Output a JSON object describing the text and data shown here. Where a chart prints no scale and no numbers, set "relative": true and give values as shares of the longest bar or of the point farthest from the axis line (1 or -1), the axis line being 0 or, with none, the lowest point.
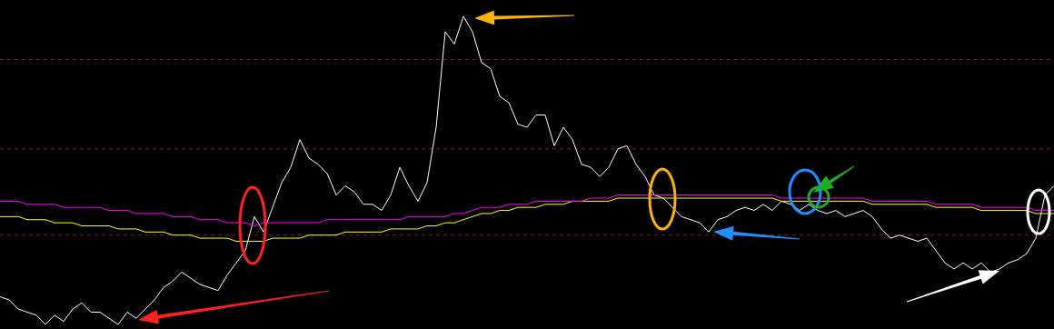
{
  "chart_data": {
    "type": "line",
    "relative": true,
    "categories": [
      null,
      null,
      null,
      null,
      null,
      null,
      null,
      null,
      null,
      null,
      null,
      null,
      null,
      null,
      null,
      null,
      null,
      null,
      null,
      null,
      null,
      null,
      null,
      null,
      null,
      null,
      null,
      null,
      null,
      null,
      null,
      null,
      null,
      null,
      null,
      null,
      null,
      null,
      null,
      null,
      null,
      null,
      null,
      null,
      null,
      null,
      null,
      null,
      null,
      null,
      null,
      null,
      null,
      null,
      null,
      null,
      null,
      null,
      null,
      null,
      null,
      null,
      null,
      null,
      null,
      null,
      null,
      null,
      null,
      null,
      null,
      null,
      null,
      null,
      null,
      null,
      null,
      null,
      null,
      null,
      null,
      null,
      null,
      null,
      null,
      null,
      null,
      null,
      null,
      null,
      null,
      null,
      null,
      null,
      null,
      null,
      null,
      null,
      null,
      null,
      null,
      null,
      null,
      null,
      null,
      null,
      null,
      null,
      null,
      null,
      null,
      null,
      null,
      null,
      null,
      null,
      null
    ],
    "series": [
      {
        "color": "#ff00ff",
        "values": [
          0.4,
          0.4,
          0.4,
          0.39,
          0.39,
          0.39,
          0.39,
          0.38,
          0.38,
          0.38,
          0.38,
          0.38,
          0.37,
          0.37,
          0.37,
          0.36,
          0.36,
          0.36,
          0.36,
          0.35,
          0.35,
          0.35,
          0.34,
          0.34,
          0.34,
          0.33,
          0.33,
          0.33,
          0.32,
          0.33,
          0.33,
          0.33,
          0.33,
          0.33,
          0.33,
          0.33,
          0.34,
          0.34,
          0.34,
          0.34,
          0.34,
          0.34,
          0.34,
          0.34,
          0.34,
          0.35,
          0.35,
          0.35,
          0.35,
          0.35,
          0.36,
          0.36,
          0.37,
          0.38,
          0.38,
          0.38,
          0.39,
          0.39,
          0.39,
          0.4,
          0.4,
          0.4,
          0.4,
          0.4,
          0.4,
          0.41,
          0.41,
          0.41,
          0.42,
          0.42,
          0.42,
          0.42,
          0.42,
          0.42,
          0.42,
          0.42,
          0.42,
          0.42,
          0.42,
          0.42,
          0.42,
          0.42,
          0.42,
          0.42,
          0.42,
          0.42,
          0.41,
          0.41,
          0.41,
          0.41,
          0.41,
          0.41,
          0.41,
          0.41,
          0.41,
          0.41,
          0.4,
          0.4,
          0.4,
          0.4,
          0.4,
          0.4,
          0.4,
          0.39,
          0.39,
          0.39,
          0.39,
          0.39,
          0.38,
          0.38,
          0.38,
          0.38,
          0.38,
          0.38,
          0.37,
          0.37,
          0.37
        ]
      },
      {
        "color": "#ffff00",
        "values": [
          0.35,
          0.35,
          0.35,
          0.34,
          0.34,
          0.34,
          0.33,
          0.33,
          0.33,
          0.32,
          0.32,
          0.32,
          0.32,
          0.31,
          0.31,
          0.31,
          0.3,
          0.3,
          0.3,
          0.29,
          0.29,
          0.29,
          0.28,
          0.28,
          0.28,
          0.28,
          0.27,
          0.27,
          0.27,
          0.27,
          0.28,
          0.28,
          0.28,
          0.28,
          0.29,
          0.29,
          0.29,
          0.29,
          0.3,
          0.3,
          0.3,
          0.3,
          0.3,
          0.31,
          0.31,
          0.31,
          0.31,
          0.32,
          0.32,
          0.33,
          0.33,
          0.34,
          0.35,
          0.36,
          0.36,
          0.37,
          0.37,
          0.38,
          0.38,
          0.38,
          0.39,
          0.39,
          0.39,
          0.4,
          0.4,
          0.4,
          0.4,
          0.4,
          0.41,
          0.41,
          0.41,
          0.41,
          0.41,
          0.41,
          0.41,
          0.41,
          0.41,
          0.41,
          0.41,
          0.41,
          0.41,
          0.41,
          0.41,
          0.41,
          0.41,
          0.41,
          0.4,
          0.4,
          0.4,
          0.4,
          0.4,
          0.4,
          0.4,
          0.4,
          0.4,
          0.4,
          0.39,
          0.39,
          0.39,
          0.39,
          0.39,
          0.39,
          0.39,
          0.38,
          0.38,
          0.38,
          0.38,
          0.38,
          0.37,
          0.37,
          0.37,
          0.37,
          0.37,
          0.37,
          0.36,
          0.36,
          0.36
        ]
      },
      {
        "color": "#ffffff",
        "values": [
          0.09,
          0.08,
          0.05,
          0.04,
          0.03,
          0,
          0.03,
          0.01,
          0.05,
          0.07,
          0.04,
          0.04,
          0.02,
          0.0,
          0.04,
          0.02,
          0.05,
          0.08,
          0.12,
          0.14,
          0.17,
          0.15,
          0.13,
          0.12,
          0.11,
          0.16,
          0.2,
          0.24,
          0.35,
          0.3,
          0.38,
          0.46,
          0.51,
          0.6,
          0.54,
          0.52,
          0.49,
          0.42,
          0.45,
          0.43,
          0.39,
          0.39,
          0.37,
          0.42,
          0.51,
          0.45,
          0.4,
          0.46,
          0.64,
          0.95,
          0.91,
          1,
          0.95,
          0.85,
          0.83,
          0.74,
          0.72,
          0.65,
          0.64,
          0.68,
          0.68,
          0.58,
          0.64,
          0.6,
          0.52,
          0.51,
          0.48,
          0.51,
          0.57,
          0.58,
          0.52,
          0.48,
          0.42,
          0.41,
          0.38,
          0.35,
          0.34,
          0.33,
          0.3,
          0.34,
          0.35,
          0.37,
          0.38,
          0.37,
          0.39,
          0.37,
          0.4,
          0.39,
          0.37,
          0.39,
          0.37,
          0.36,
          0.37,
          0.35,
          0.36,
          0.37,
          0.35,
          0.31,
          0.28,
          0.29,
          0.28,
          0.27,
          0.28,
          0.24,
          0.2,
          0.18,
          0.2,
          0.18,
          0.2,
          0.17,
          0.18,
          0.2,
          0.21,
          0.23,
          0.28,
          0.42,
          0.45
        ]
      }
    ],
    "ref_lines": [
      {
        "axis": "y",
        "value": 0.86,
        "color": "#8b1a1a",
        "line_style": "dashed"
      },
      {
        "axis": "y",
        "value": 0.57,
        "color": "#8b1a1a",
        "line_style": "dashed"
      },
      {
        "axis": "y",
        "value": 0.29,
        "color": "#8b1a1a",
        "line_style": "dashed"
      }
    ]
  }
}
